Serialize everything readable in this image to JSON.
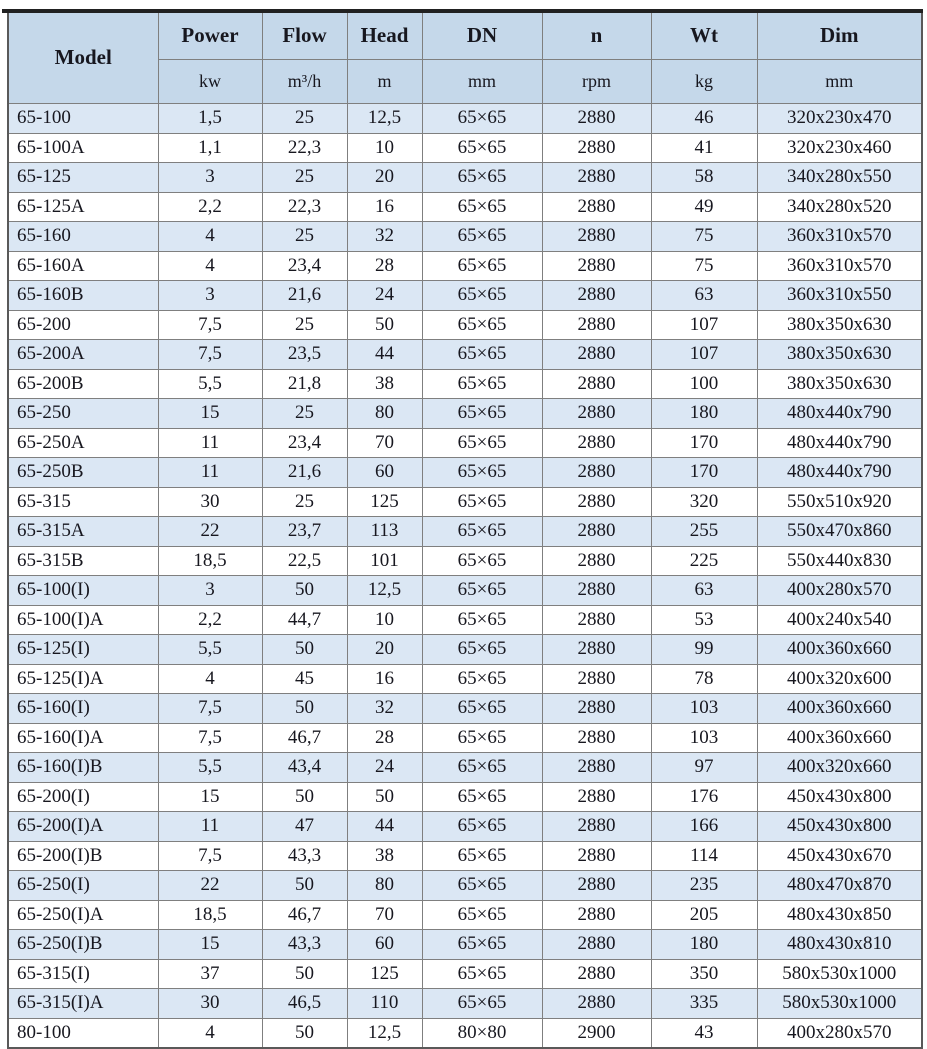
{
  "colors": {
    "header_bg": "#c5d8ea",
    "row_alt_bg": "#dbe7f4",
    "row_bg": "#ffffff",
    "grid_border": "#7f7f7f",
    "outer_border": "#595959",
    "top_rule": "#212121",
    "text": "#17171f"
  },
  "table": {
    "header": {
      "model": "Model",
      "power": "Power",
      "flow": "Flow",
      "head": "Head",
      "dn": "DN",
      "n": "n",
      "wt": "Wt",
      "dim": "Dim"
    },
    "units": {
      "power": "kw",
      "flow": "m³/h",
      "head": "m",
      "dn": "mm",
      "n": "rpm",
      "wt": "kg",
      "dim": "mm"
    },
    "rows": [
      {
        "model": "65-100",
        "power": "1,5",
        "flow": "25",
        "head": "12,5",
        "dn": "65×65",
        "n": "2880",
        "wt": "46",
        "dim": "320x230x470"
      },
      {
        "model": "65-100A",
        "power": "1,1",
        "flow": "22,3",
        "head": "10",
        "dn": "65×65",
        "n": "2880",
        "wt": "41",
        "dim": "320x230x460"
      },
      {
        "model": "65-125",
        "power": "3",
        "flow": "25",
        "head": "20",
        "dn": "65×65",
        "n": "2880",
        "wt": "58",
        "dim": "340x280x550"
      },
      {
        "model": "65-125A",
        "power": "2,2",
        "flow": "22,3",
        "head": "16",
        "dn": "65×65",
        "n": "2880",
        "wt": "49",
        "dim": "340x280x520"
      },
      {
        "model": "65-160",
        "power": "4",
        "flow": "25",
        "head": "32",
        "dn": "65×65",
        "n": "2880",
        "wt": "75",
        "dim": "360x310x570"
      },
      {
        "model": "65-160A",
        "power": "4",
        "flow": "23,4",
        "head": "28",
        "dn": "65×65",
        "n": "2880",
        "wt": "75",
        "dim": "360x310x570"
      },
      {
        "model": "65-160B",
        "power": "3",
        "flow": "21,6",
        "head": "24",
        "dn": "65×65",
        "n": "2880",
        "wt": "63",
        "dim": "360x310x550"
      },
      {
        "model": "65-200",
        "power": "7,5",
        "flow": "25",
        "head": "50",
        "dn": "65×65",
        "n": "2880",
        "wt": "107",
        "dim": "380x350x630"
      },
      {
        "model": "65-200A",
        "power": "7,5",
        "flow": "23,5",
        "head": "44",
        "dn": "65×65",
        "n": "2880",
        "wt": "107",
        "dim": "380x350x630"
      },
      {
        "model": "65-200B",
        "power": "5,5",
        "flow": "21,8",
        "head": "38",
        "dn": "65×65",
        "n": "2880",
        "wt": "100",
        "dim": "380x350x630"
      },
      {
        "model": "65-250",
        "power": "15",
        "flow": "25",
        "head": "80",
        "dn": "65×65",
        "n": "2880",
        "wt": "180",
        "dim": "480x440x790"
      },
      {
        "model": "65-250A",
        "power": "11",
        "flow": "23,4",
        "head": "70",
        "dn": "65×65",
        "n": "2880",
        "wt": "170",
        "dim": "480x440x790"
      },
      {
        "model": "65-250B",
        "power": "11",
        "flow": "21,6",
        "head": "60",
        "dn": "65×65",
        "n": "2880",
        "wt": "170",
        "dim": "480x440x790"
      },
      {
        "model": "65-315",
        "power": "30",
        "flow": "25",
        "head": "125",
        "dn": "65×65",
        "n": "2880",
        "wt": "320",
        "dim": "550x510x920"
      },
      {
        "model": "65-315A",
        "power": "22",
        "flow": "23,7",
        "head": "113",
        "dn": "65×65",
        "n": "2880",
        "wt": "255",
        "dim": "550x470x860"
      },
      {
        "model": "65-315B",
        "power": "18,5",
        "flow": "22,5",
        "head": "101",
        "dn": "65×65",
        "n": "2880",
        "wt": "225",
        "dim": "550x440x830"
      },
      {
        "model": "65-100(I)",
        "power": "3",
        "flow": "50",
        "head": "12,5",
        "dn": "65×65",
        "n": "2880",
        "wt": "63",
        "dim": "400x280x570"
      },
      {
        "model": "65-100(I)A",
        "power": "2,2",
        "flow": "44,7",
        "head": "10",
        "dn": "65×65",
        "n": "2880",
        "wt": "53",
        "dim": "400x240x540"
      },
      {
        "model": "65-125(I)",
        "power": "5,5",
        "flow": "50",
        "head": "20",
        "dn": "65×65",
        "n": "2880",
        "wt": "99",
        "dim": "400x360x660"
      },
      {
        "model": "65-125(I)A",
        "power": "4",
        "flow": "45",
        "head": "16",
        "dn": "65×65",
        "n": "2880",
        "wt": "78",
        "dim": "400x320x600"
      },
      {
        "model": "65-160(I)",
        "power": "7,5",
        "flow": "50",
        "head": "32",
        "dn": "65×65",
        "n": "2880",
        "wt": "103",
        "dim": "400x360x660"
      },
      {
        "model": "65-160(I)A",
        "power": "7,5",
        "flow": "46,7",
        "head": "28",
        "dn": "65×65",
        "n": "2880",
        "wt": "103",
        "dim": "400x360x660"
      },
      {
        "model": "65-160(I)B",
        "power": "5,5",
        "flow": "43,4",
        "head": "24",
        "dn": "65×65",
        "n": "2880",
        "wt": "97",
        "dim": "400x320x660"
      },
      {
        "model": "65-200(I)",
        "power": "15",
        "flow": "50",
        "head": "50",
        "dn": "65×65",
        "n": "2880",
        "wt": "176",
        "dim": "450x430x800"
      },
      {
        "model": "65-200(I)A",
        "power": "11",
        "flow": "47",
        "head": "44",
        "dn": "65×65",
        "n": "2880",
        "wt": "166",
        "dim": "450x430x800"
      },
      {
        "model": "65-200(I)B",
        "power": "7,5",
        "flow": "43,3",
        "head": "38",
        "dn": "65×65",
        "n": "2880",
        "wt": "114",
        "dim": "450x430x670"
      },
      {
        "model": "65-250(I)",
        "power": "22",
        "flow": "50",
        "head": "80",
        "dn": "65×65",
        "n": "2880",
        "wt": "235",
        "dim": "480x470x870"
      },
      {
        "model": "65-250(I)A",
        "power": "18,5",
        "flow": "46,7",
        "head": "70",
        "dn": "65×65",
        "n": "2880",
        "wt": "205",
        "dim": "480x430x850"
      },
      {
        "model": "65-250(I)B",
        "power": "15",
        "flow": "43,3",
        "head": "60",
        "dn": "65×65",
        "n": "2880",
        "wt": "180",
        "dim": "480x430x810"
      },
      {
        "model": "65-315(I)",
        "power": "37",
        "flow": "50",
        "head": "125",
        "dn": "65×65",
        "n": "2880",
        "wt": "350",
        "dim": "580x530x1000"
      },
      {
        "model": "65-315(I)A",
        "power": "30",
        "flow": "46,5",
        "head": "110",
        "dn": "65×65",
        "n": "2880",
        "wt": "335",
        "dim": "580x530x1000"
      },
      {
        "model": "80-100",
        "power": "4",
        "flow": "50",
        "head": "12,5",
        "dn": "80×80",
        "n": "2900",
        "wt": "43",
        "dim": "400x280x570"
      }
    ]
  }
}
